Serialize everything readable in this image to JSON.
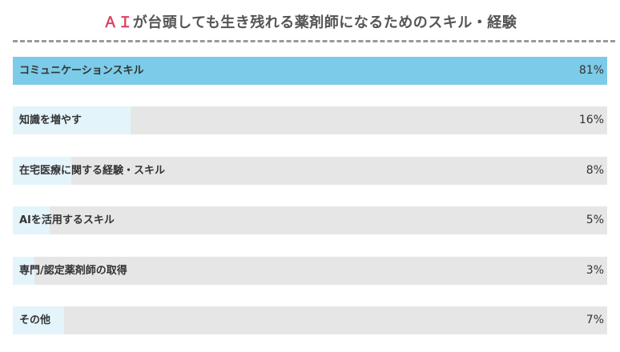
{
  "chart_data": {
    "type": "bar",
    "orientation": "horizontal",
    "title_accent": "ＡＩ",
    "title_rest": "が台頭しても生き残れる薬剤師になるためのスキル・経験",
    "categories": [
      "コミュニケーションスキル",
      "知識を増やす",
      "在宅医療に関する経験・スキル",
      "AIを活用するスキル",
      "専門/認定薬剤師の取得",
      "その他"
    ],
    "values": [
      81,
      16,
      8,
      5,
      3,
      7
    ],
    "value_labels": [
      "81%",
      "16%",
      "8%",
      "5%",
      "3%",
      "7%"
    ],
    "xlim": [
      0,
      81
    ],
    "grid": false,
    "legend": "none"
  },
  "colors": {
    "highlight_fill": "#7ccbe8",
    "fill": "#e4f4fb",
    "track": "#e6e6e6",
    "title_accent": "#d9455f",
    "title_text": "#555555"
  }
}
